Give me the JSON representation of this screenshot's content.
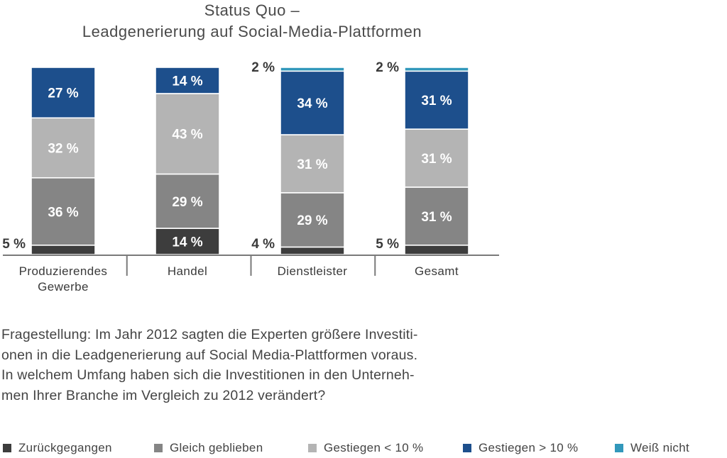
{
  "chart_data": {
    "type": "bar",
    "stacked": true,
    "title": [
      "Status Quo –",
      "Leadgenerierung auf Social-Media-Plattformen"
    ],
    "categories": [
      "Produzierendes Gewerbe",
      "Handel",
      "Dienstleister",
      "Gesamt"
    ],
    "category_label_lines": [
      [
        "Produzierendes",
        "Gewerbe"
      ],
      [
        "Handel"
      ],
      [
        "Dienstleister"
      ],
      [
        "Gesamt"
      ]
    ],
    "ylim": [
      0,
      100
    ],
    "unit": "%",
    "series": [
      {
        "name": "Zurückgegangen",
        "color": "#3d3d3d",
        "values": [
          5,
          14,
          4,
          5
        ]
      },
      {
        "name": "Gleich geblieben",
        "color": "#858585",
        "values": [
          36,
          29,
          29,
          31
        ]
      },
      {
        "name": "Gestiegen < 10 %",
        "color": "#b4b4b4",
        "values": [
          32,
          43,
          31,
          31
        ]
      },
      {
        "name": "Gestiegen > 10 %",
        "color": "#1d4f8c",
        "values": [
          27,
          14,
          34,
          31
        ]
      },
      {
        "name": "Weiß nicht",
        "color": "#3298bb",
        "values": [
          0,
          0,
          2,
          2
        ]
      }
    ],
    "legend_position": "bottom",
    "grid": false
  },
  "question": [
    "Fragestellung: Im Jahr 2012 sagten die Experten größere Investiti-",
    "onen in die Leadgenerierung auf Social Media-Plattformen voraus.",
    "In welchem Umfang haben sich die Investitionen in den Unterneh-",
    "men Ihrer Branche im Vergleich zu 2012 verändert?"
  ]
}
